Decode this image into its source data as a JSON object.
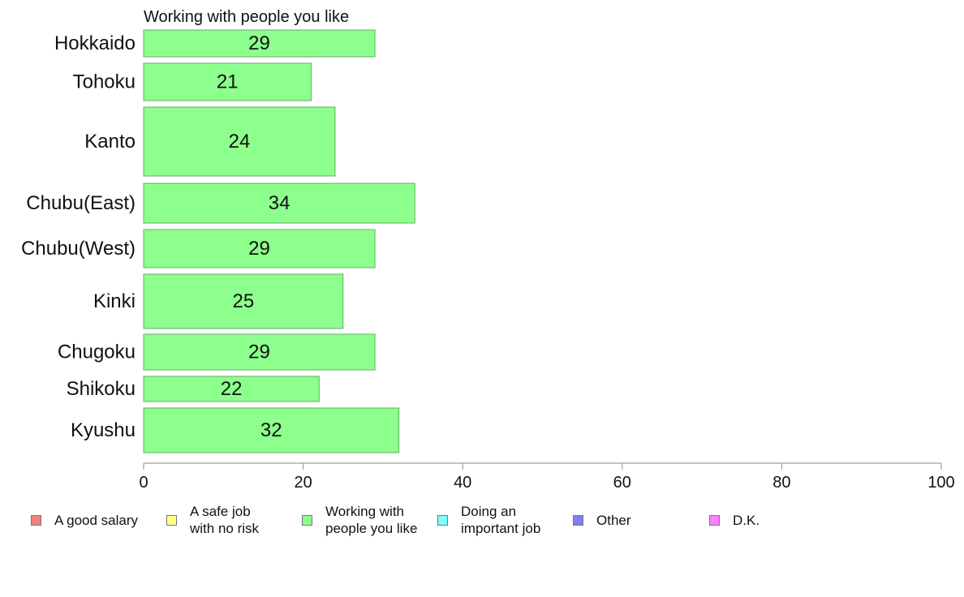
{
  "chart_data": {
    "type": "bar",
    "orientation": "horizontal",
    "title": "Working with people you like",
    "categories": [
      "Hokkaido",
      "Tohoku",
      "Kanto",
      "Chubu(East)",
      "Chubu(West)",
      "Kinki",
      "Chugoku",
      "Shikoku",
      "Kyushu"
    ],
    "series": [
      {
        "name": "Working with people you like",
        "values": [
          29,
          21,
          24,
          34,
          29,
          25,
          29,
          22,
          32
        ],
        "color": "#8cff8c"
      }
    ],
    "xlim": [
      0,
      100
    ],
    "xticks": [
      "0",
      "20",
      "40",
      "60",
      "80",
      "100"
    ],
    "grid": false,
    "legend_position": "bottom"
  },
  "legend": [
    {
      "label": "A good salary",
      "color": "#f08080"
    },
    {
      "label": "A safe job\nwith no risk",
      "color": "#ffff80"
    },
    {
      "label": "Working with\npeople you like",
      "color": "#8cff8c"
    },
    {
      "label": "Doing an\nimportant job",
      "color": "#80ffff"
    },
    {
      "label": "Other",
      "color": "#8080f0"
    },
    {
      "label": "D.K.",
      "color": "#ff80ff"
    }
  ]
}
